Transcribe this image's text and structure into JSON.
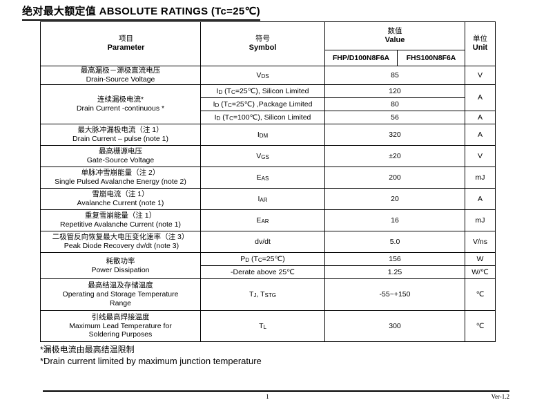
{
  "title": "绝对最大额定值 ABSOLUTE RATINGS (Tc=25℃)",
  "table": {
    "header": {
      "param_zh": "项目",
      "param_en": "Parameter",
      "symbol_zh": "符号",
      "symbol_en": "Symbol",
      "value_zh": "数值",
      "value_en": "Value",
      "unit_zh": "单位",
      "unit_en": "Unit",
      "variant_1": "FHP/D100N8F6A",
      "variant_2": "FHS100N8F6A"
    },
    "rows": [
      {
        "cells": [
          {
            "type": "param",
            "lines": [
              "最高漏极－源极直流电压",
              "Drain-Source Voltage"
            ]
          },
          {
            "type": "symbol",
            "segs": [
              [
                "V"
              ],
              [
                "DS",
                "sub"
              ]
            ]
          },
          {
            "type": "value",
            "text": "85",
            "colspan": 2
          },
          {
            "type": "unit",
            "text": "V"
          }
        ]
      },
      {
        "cells": [
          {
            "type": "param",
            "lines": [
              "连续漏极电流*",
              "Drain Current -continuous *"
            ],
            "rowspan": 3
          },
          {
            "type": "symbol",
            "segs": [
              [
                "I"
              ],
              [
                "D",
                "sub"
              ],
              [
                " (T"
              ],
              [
                "C",
                "sub"
              ],
              [
                "=25℃), Silicon Limited"
              ]
            ]
          },
          {
            "type": "value",
            "text": "120",
            "colspan": 2
          },
          {
            "type": "unit",
            "text": "A",
            "rowspan": 2
          }
        ]
      },
      {
        "cells": [
          {
            "type": "symbol",
            "segs": [
              [
                "I"
              ],
              [
                "D",
                "sub"
              ],
              [
                " (T"
              ],
              [
                "C",
                "sub"
              ],
              [
                "=25℃) ,Package Limited"
              ]
            ]
          },
          {
            "type": "value",
            "text": "80",
            "colspan": 2
          }
        ]
      },
      {
        "cells": [
          {
            "type": "symbol",
            "segs": [
              [
                "I"
              ],
              [
                "D",
                "sub"
              ],
              [
                " (T"
              ],
              [
                "C",
                "sub"
              ],
              [
                "=100℃), Silicon Limited"
              ]
            ]
          },
          {
            "type": "value",
            "text": "56",
            "colspan": 2
          },
          {
            "type": "unit",
            "text": "A"
          }
        ]
      },
      {
        "cells": [
          {
            "type": "param",
            "lines": [
              "最大脉冲漏极电流（注 1）",
              "Drain Current – pulse (note 1)"
            ]
          },
          {
            "type": "symbol",
            "segs": [
              [
                "I"
              ],
              [
                "DM",
                "sub"
              ]
            ]
          },
          {
            "type": "value",
            "text": "320",
            "colspan": 2
          },
          {
            "type": "unit",
            "text": "A"
          }
        ]
      },
      {
        "cells": [
          {
            "type": "param",
            "lines": [
              "最高栅源电压",
              "Gate-Source Voltage"
            ]
          },
          {
            "type": "symbol",
            "segs": [
              [
                "V"
              ],
              [
                "GS",
                "sub"
              ]
            ]
          },
          {
            "type": "value",
            "text": "±20",
            "colspan": 2
          },
          {
            "type": "unit",
            "text": "V"
          }
        ]
      },
      {
        "cells": [
          {
            "type": "param",
            "lines": [
              "单脉冲雪崩能量（注 2）",
              "Single Pulsed Avalanche Energy (note 2)"
            ]
          },
          {
            "type": "symbol",
            "segs": [
              [
                "E"
              ],
              [
                "AS",
                "sub"
              ]
            ]
          },
          {
            "type": "value",
            "text": "200",
            "colspan": 2
          },
          {
            "type": "unit",
            "text": "mJ"
          }
        ]
      },
      {
        "cells": [
          {
            "type": "param",
            "lines": [
              "雪崩电流（注 1）",
              "Avalanche Current (note 1)"
            ]
          },
          {
            "type": "symbol",
            "segs": [
              [
                "I"
              ],
              [
                "AR",
                "sub"
              ]
            ]
          },
          {
            "type": "value",
            "text": "20",
            "colspan": 2
          },
          {
            "type": "unit",
            "text": "A"
          }
        ]
      },
      {
        "cells": [
          {
            "type": "param",
            "lines": [
              "重复雪崩能量（注 1）",
              "Repetitive Avalanche Current (note 1)"
            ]
          },
          {
            "type": "symbol",
            "segs": [
              [
                "E"
              ],
              [
                "AR",
                "sub"
              ]
            ]
          },
          {
            "type": "value",
            "text": "16",
            "colspan": 2
          },
          {
            "type": "unit",
            "text": "mJ"
          }
        ]
      },
      {
        "cells": [
          {
            "type": "param",
            "lines": [
              "二极管反向恢复最大电压变化速率（注 3）",
              " Peak Diode Recovery dv/dt (note 3)"
            ]
          },
          {
            "type": "symbol",
            "segs": [
              [
                "dv/dt"
              ]
            ]
          },
          {
            "type": "value",
            "text": "5.0",
            "colspan": 2
          },
          {
            "type": "unit",
            "text": "V/ns"
          }
        ]
      },
      {
        "cells": [
          {
            "type": "param",
            "lines": [
              "耗散功率",
              "Power Dissipation"
            ],
            "rowspan": 2
          },
          {
            "type": "symbol",
            "segs": [
              [
                "P"
              ],
              [
                "D",
                "sub"
              ],
              [
                "  (T"
              ],
              [
                "C",
                "sub"
              ],
              [
                "=25℃)"
              ]
            ]
          },
          {
            "type": "value",
            "text": "156",
            "colspan": 2
          },
          {
            "type": "unit",
            "text": "W"
          }
        ]
      },
      {
        "cells": [
          {
            "type": "symbol",
            "segs": [
              [
                "-Derate above 25℃"
              ]
            ]
          },
          {
            "type": "value",
            "text": "1.25",
            "colspan": 2
          },
          {
            "type": "unit",
            "text": "W/℃"
          }
        ]
      },
      {
        "cells": [
          {
            "type": "param",
            "lines": [
              "最高结温及存储温度",
              "Operating and Storage Temperature",
              "Range"
            ]
          },
          {
            "type": "symbol",
            "segs": [
              [
                "T"
              ],
              [
                "J",
                "sub"
              ],
              [
                ", T"
              ],
              [
                "STG",
                "sub"
              ]
            ]
          },
          {
            "type": "value",
            "text": "-55~+150",
            "colspan": 2
          },
          {
            "type": "unit",
            "text": "℃"
          }
        ]
      },
      {
        "cells": [
          {
            "type": "param",
            "lines": [
              "引线最高焊接温度",
              "Maximum Lead Temperature for",
              "Soldering Purposes"
            ]
          },
          {
            "type": "symbol",
            "segs": [
              [
                "T"
              ],
              [
                "L",
                "sub"
              ]
            ]
          },
          {
            "type": "value",
            "text": "300",
            "colspan": 2
          },
          {
            "type": "unit",
            "text": "℃"
          }
        ]
      }
    ]
  },
  "footnotes": {
    "line1": "*漏极电流由最高结温限制",
    "line2": "*Drain current limited by maximum junction temperature"
  },
  "footer": {
    "page_number": "1",
    "version": "Ver-1.2"
  }
}
